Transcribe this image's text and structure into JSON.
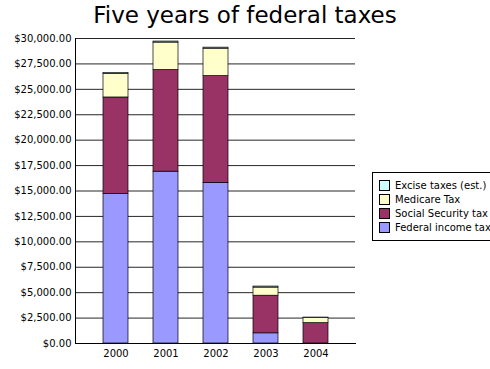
{
  "chart_data": {
    "type": "bar",
    "title": "Five years of federal taxes",
    "categories": [
      "2000",
      "2001",
      "2002",
      "2003",
      "2004"
    ],
    "series": [
      {
        "name": "Federal income tax",
        "color": "#9999ff",
        "values": [
          14700,
          16900,
          15800,
          1000,
          0
        ]
      },
      {
        "name": "Social Security tax",
        "color": "#993366",
        "values": [
          9500,
          10000,
          10500,
          3700,
          2000
        ]
      },
      {
        "name": "Medicare Tax",
        "color": "#ffffcc",
        "values": [
          2300,
          2700,
          2700,
          800,
          500
        ]
      },
      {
        "name": "Excise taxes (est.)",
        "color": "#ccffff",
        "values": [
          100,
          100,
          100,
          100,
          50
        ]
      }
    ],
    "ylim": [
      0,
      30000
    ],
    "yticks": [
      {
        "value": 0,
        "label": "$0.00"
      },
      {
        "value": 2500,
        "label": "$2,500.00"
      },
      {
        "value": 5000,
        "label": "$5,000.00"
      },
      {
        "value": 7500,
        "label": "$7,500.00"
      },
      {
        "value": 10000,
        "label": "$10,000.00"
      },
      {
        "value": 12500,
        "label": "$12,500.00"
      },
      {
        "value": 15000,
        "label": "$15,000.00"
      },
      {
        "value": 17500,
        "label": "$17,500.00"
      },
      {
        "value": 20000,
        "label": "$20,000.00"
      },
      {
        "value": 22500,
        "label": "$22,500.00"
      },
      {
        "value": 25000,
        "label": "$25,000.00"
      },
      {
        "value": 27500,
        "label": "$27,500.00"
      },
      {
        "value": 30000,
        "label": "$30,000.00"
      }
    ],
    "grid": true,
    "stacked": true,
    "legend": "right"
  }
}
